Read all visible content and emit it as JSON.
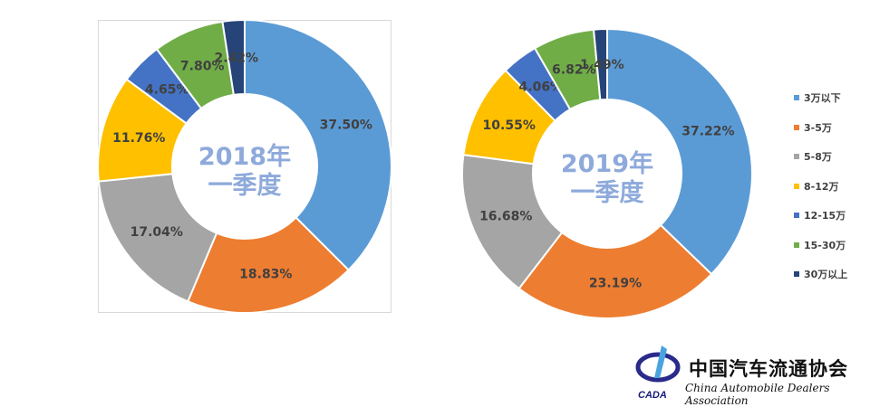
{
  "chart_data": [
    {
      "type": "pie",
      "title": "2018年",
      "subtitle": "一季度",
      "categories": [
        "3万以下",
        "3-5万",
        "5-8万",
        "8-12万",
        "12-15万",
        "15-30万",
        "30万以上"
      ],
      "values": [
        37.5,
        18.83,
        17.04,
        11.76,
        4.65,
        7.8,
        2.42
      ],
      "labels": [
        "37.50%",
        "18.83%",
        "17.04%",
        "11.76%",
        "4.65%",
        "7.80%",
        "2.42%"
      ]
    },
    {
      "type": "pie",
      "title": "2019年",
      "subtitle": "一季度",
      "categories": [
        "3万以下",
        "3-5万",
        "5-8万",
        "8-12万",
        "12-15万",
        "15-30万",
        "30万以上"
      ],
      "values": [
        37.22,
        23.19,
        16.68,
        10.55,
        4.06,
        6.82,
        1.49
      ],
      "labels": [
        "37.22%",
        "23.19%",
        "16.68%",
        "10.55%",
        "4.06%",
        "6.82%",
        "1.49%"
      ]
    }
  ],
  "colors": [
    "#5B9BD5",
    "#ED7D31",
    "#A5A5A5",
    "#FFC000",
    "#4472C4",
    "#70AD47",
    "#264478"
  ],
  "legend": [
    "3万以下",
    "3-5万",
    "5-8万",
    "8-12万",
    "12-15万",
    "15-30万",
    "30万以上"
  ],
  "logo": {
    "cn": "中国汽车流通协会",
    "en": "China Automobile Dealers Association",
    "abbr": "CADA"
  }
}
